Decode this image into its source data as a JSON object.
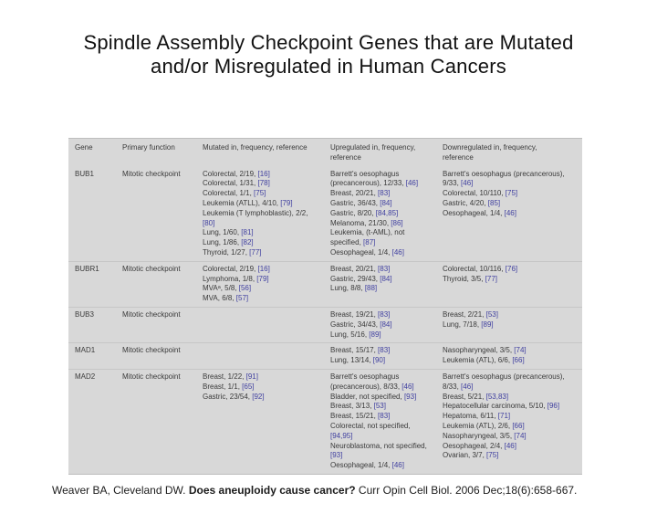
{
  "slide": {
    "title_line1": "Spindle Assembly Checkpoint Genes that are Mutated",
    "title_line2": "and/or Misregulated in Human Cancers",
    "citation": {
      "authors": "Weaver BA, Cleveland DW. ",
      "title_bold": "Does aneuploidy cause cancer?",
      "journal": " Curr Opin Cell Biol. 2006 Dec;18(6):658-667."
    }
  },
  "table": {
    "headers": [
      "Gene",
      "Primary function",
      "Mutated in, frequency, reference",
      "Upregulated in, frequency, reference",
      "Downregulated in, frequency, reference"
    ],
    "ref_color": "#4040a0",
    "panel_color": "#d8d8d8",
    "rows": [
      {
        "gene": "BUB1",
        "function": "Mitotic checkpoint",
        "mutated": [
          "Colorectal, 2/19, [16]",
          "Colorectal, 1/31, [78]",
          "Colorectal, 1/1, [75]",
          "Leukemia (ATLL), 4/10, [79]",
          "Leukemia (T lymphoblastic), 2/2, [80]",
          "Lung, 1/60, [81]",
          "Lung, 1/86, [82]",
          "Thyroid, 1/27, [77]"
        ],
        "upregulated": [
          "Barrett's oesophagus (precancerous), 12/33, [46]",
          "Breast, 20/21, [83]",
          "Gastric, 36/43, [84]",
          "Gastric, 8/20, [84,85]",
          "Melanoma, 21/30, [86]",
          "Leukemia, (t-AML), not specified, [87]",
          "Oesophageal, 1/4, [46]"
        ],
        "downregulated": [
          "Barrett's oesophagus (precancerous), 9/33, [46]",
          "Colorectal, 10/110, [75]",
          "Gastric, 4/20, [85]",
          "Oesophageal, 1/4, [46]"
        ]
      },
      {
        "gene": "BUBR1",
        "function": "Mitotic checkpoint",
        "mutated": [
          "Colorectal, 2/19, [16]",
          "Lymphoma, 1/8, [79]",
          "MVAᵃ, 5/8, [56]",
          "MVA, 6/8, [57]"
        ],
        "upregulated": [
          "Breast, 20/21, [83]",
          "Gastric, 29/43, [84]",
          "Lung, 8/8, [88]"
        ],
        "downregulated": [
          "Colorectal, 10/116, [76]",
          "Thyroid, 3/5, [77]"
        ]
      },
      {
        "gene": "BUB3",
        "function": "Mitotic checkpoint",
        "mutated": [],
        "upregulated": [
          "Breast, 19/21, [83]",
          "Gastric, 34/43, [84]",
          "Lung, 5/16, [89]"
        ],
        "downregulated": [
          "Breast, 2/21, [53]",
          "Lung, 7/18, [89]"
        ]
      },
      {
        "gene": "MAD1",
        "function": "Mitotic checkpoint",
        "mutated": [],
        "upregulated": [
          "Breast, 15/17, [83]",
          "Lung, 13/14, [90]"
        ],
        "downregulated": [
          "Nasopharyngeal, 3/5, [74]",
          "Leukemia (ATL), 6/6, [66]"
        ]
      },
      {
        "gene": "MAD2",
        "function": "Mitotic checkpoint",
        "mutated": [
          "Breast, 1/22, [91]",
          "Breast, 1/1, [65]",
          "Gastric, 23/54, [92]"
        ],
        "upregulated": [
          "Barrett's oesophagus (precancerous), 8/33, [46]",
          "Bladder, not specified, [93]",
          "Breast, 3/13, [53]",
          "Breast, 15/21, [83]",
          "Colorectal, not specified, [94,95]",
          "Neuroblastoma, not specified, [93]",
          "Oesophageal, 1/4, [46]"
        ],
        "downregulated": [
          "Barrett's oesophagus (precancerous), 8/33, [46]",
          "Breast, 5/21, [53,83]",
          "Hepatocellular carcinoma, 5/10, [96]",
          "Hepatoma, 6/11, [71]",
          "Leukemia (ATL), 2/6, [66]",
          "Nasopharyngeal, 3/5, [74]",
          "Oesophageal, 2/4, [46]",
          "Ovarian, 3/7, [75]"
        ]
      }
    ]
  }
}
